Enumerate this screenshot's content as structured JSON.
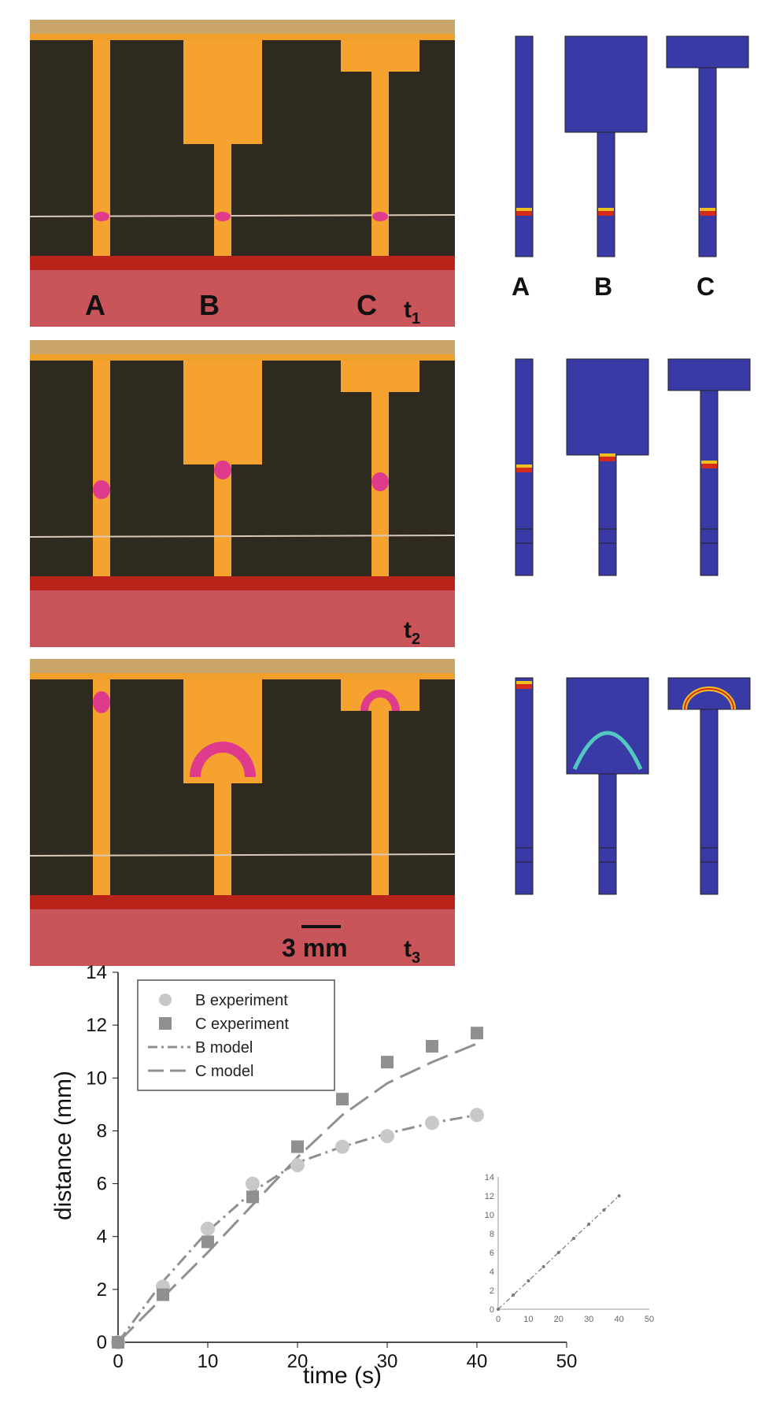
{
  "figure": {
    "channel_labels": [
      "A",
      "B",
      "C"
    ],
    "time_labels": [
      {
        "main": "t",
        "sub": "1"
      },
      {
        "main": "t",
        "sub": "2"
      },
      {
        "main": "t",
        "sub": "3"
      }
    ],
    "scale_bar": "3 mm"
  },
  "colors": {
    "sim_blue": "#3a3aa6",
    "photo_orange": "#f5a32e",
    "photo_red": "#b7281e",
    "magenta": "#e03a8c",
    "series_gray": "#909090",
    "point_light": "#c8c8c8"
  },
  "chart_data": [
    {
      "type": "scatter",
      "xlabel": "time (s)",
      "ylabel": "distance (mm)",
      "xlim": [
        0,
        50
      ],
      "ylim": [
        0,
        14
      ],
      "xticks": [
        0,
        10,
        20,
        30,
        40,
        50
      ],
      "yticks": [
        0,
        2,
        4,
        6,
        8,
        10,
        12,
        14
      ],
      "legend_position": "top-left",
      "series": [
        {
          "name": "B experiment",
          "kind": "points",
          "marker": "circle",
          "x": [
            0,
            5,
            10,
            15,
            20,
            25,
            30,
            35,
            40
          ],
          "y": [
            0,
            2.1,
            4.3,
            6.0,
            6.7,
            7.4,
            7.8,
            8.3,
            8.6
          ]
        },
        {
          "name": "C experiment",
          "kind": "points",
          "marker": "square",
          "x": [
            0,
            5,
            10,
            15,
            20,
            25,
            30,
            35,
            40
          ],
          "y": [
            0,
            1.8,
            3.8,
            5.5,
            7.4,
            9.2,
            10.6,
            11.2,
            11.7
          ]
        },
        {
          "name": "B model",
          "kind": "line",
          "dash": "dash-dot",
          "x": [
            0,
            5,
            10,
            15,
            20,
            25,
            30,
            35,
            40
          ],
          "y": [
            0,
            2.3,
            4.2,
            5.7,
            6.8,
            7.4,
            7.9,
            8.3,
            8.6
          ]
        },
        {
          "name": "C model",
          "kind": "line",
          "dash": "long-dash",
          "x": [
            0,
            5,
            10,
            15,
            20,
            25,
            30,
            35,
            40
          ],
          "y": [
            0,
            1.7,
            3.4,
            5.2,
            7.0,
            8.6,
            9.8,
            10.6,
            11.3
          ]
        }
      ]
    },
    {
      "type": "line",
      "xlim": [
        0,
        50
      ],
      "ylim": [
        0,
        14
      ],
      "xticks": [
        0,
        10,
        20,
        30,
        40,
        50
      ],
      "yticks": [
        0,
        2,
        4,
        6,
        8,
        10,
        12,
        14
      ],
      "series": [
        {
          "x": [
            0,
            5,
            10,
            15,
            20,
            25,
            30,
            35,
            40
          ],
          "y": [
            0,
            1.5,
            3.0,
            4.5,
            6.0,
            7.5,
            9.0,
            10.5,
            12.0
          ]
        }
      ]
    }
  ]
}
